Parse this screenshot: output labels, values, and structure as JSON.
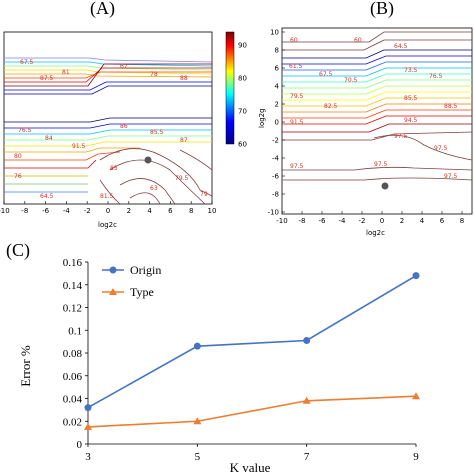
{
  "panels": {
    "a_label": "(A)",
    "b_label": "(B)",
    "c_label": "(C)"
  },
  "contour_a": {
    "xlabel": "log2c",
    "x_ticks": [
      "-10",
      "-8",
      "-6",
      "-4",
      "-2",
      "0",
      "2",
      "4",
      "6",
      "8",
      "10"
    ],
    "colorbar_ticks": [
      "90",
      "80",
      "70",
      "60"
    ],
    "colorbar_range": [
      60,
      94
    ],
    "labels": [
      "67.5",
      "76.5",
      "87.5",
      "81",
      "84",
      "67",
      "78",
      "88",
      "91.5",
      "86",
      "85.5",
      "76",
      "64.5",
      "87",
      "85",
      "79.5",
      "63",
      "80",
      "81.5",
      "79"
    ]
  },
  "contour_b": {
    "xlabel": "log2c",
    "ylabel": "log2g",
    "x_ticks": [
      "-10",
      "-8",
      "-6",
      "-4",
      "-2",
      "0",
      "2",
      "4",
      "6",
      "8"
    ],
    "y_ticks": [
      "10",
      "8",
      "6",
      "4",
      "2",
      "0",
      "-2",
      "-4",
      "-6",
      "-8",
      "-10"
    ],
    "labels": [
      "60",
      "60",
      "64.5",
      "61.5",
      "67.5",
      "70.5",
      "73.5",
      "76.5",
      "79.5",
      "82.5",
      "85.5",
      "88.5",
      "91.5",
      "94.5",
      "97.5",
      "97.5",
      "97.5",
      "97.5",
      "97.5"
    ]
  },
  "chart_data": {
    "type": "line",
    "categories": [
      "3",
      "5",
      "7",
      "9"
    ],
    "series": [
      {
        "name": "Origin",
        "values": [
          0.032,
          0.086,
          0.091,
          0.148
        ],
        "color": "#4472C4",
        "marker": "circle"
      },
      {
        "name": "Type",
        "values": [
          0.015,
          0.02,
          0.038,
          0.042
        ],
        "color": "#ED7D31",
        "marker": "triangle"
      }
    ],
    "xlabel": "K value",
    "ylabel": "Error %",
    "ylim": [
      0,
      0.16
    ],
    "y_ticks": [
      "0",
      "0.02",
      "0.04",
      "0.06",
      "0.08",
      "0.1",
      "0.12",
      "0.14",
      "0.16"
    ],
    "grid": false,
    "legend": "top-left"
  }
}
